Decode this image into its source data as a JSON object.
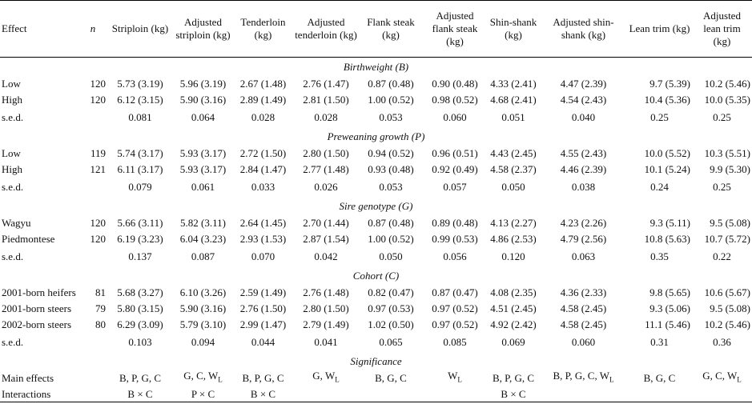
{
  "headers": [
    "Effect",
    "n",
    "Striploin (kg)",
    "Adjusted striploin (kg)",
    "Tenderloin (kg)",
    "Adjusted tenderloin (kg)",
    "Flank steak (kg)",
    "Adjusted flank steak (kg)",
    "Shin-shank (kg)",
    "Adjusted shin-shank (kg)",
    "Lean trim (kg)",
    "Adjusted lean trim (kg)"
  ],
  "sections": [
    {
      "title": "Birthweight (B)",
      "rows": [
        {
          "label": "Low",
          "n": "120",
          "values": [
            "5.73 (3.19)",
            "5.96 (3.19)",
            "2.67 (1.48)",
            "2.76 (1.47)",
            "0.87 (0.48)",
            "0.90 (0.48)",
            "4.33 (2.41)",
            "4.47 (2.39)",
            "9.7 (5.39)",
            "10.2 (5.46)"
          ]
        },
        {
          "label": "High",
          "n": "120",
          "values": [
            "6.12 (3.15)",
            "5.90 (3.16)",
            "2.89 (1.49)",
            "2.81 (1.50)",
            "1.00 (0.52)",
            "0.98 (0.52)",
            "4.68 (2.41)",
            "4.54 (2.43)",
            "10.4 (5.36)",
            "10.0 (5.35)"
          ]
        }
      ],
      "sed": {
        "label": "s.e.d.",
        "values": [
          "0.081",
          "0.064",
          "0.028",
          "0.028",
          "0.053",
          "0.060",
          "0.051",
          "0.040",
          "0.25",
          "0.25"
        ]
      }
    },
    {
      "title": "Preweaning growth (P)",
      "rows": [
        {
          "label": "Low",
          "n": "119",
          "values": [
            "5.74 (3.17)",
            "5.93 (3.17)",
            "2.72 (1.50)",
            "2.80 (1.50)",
            "0.94 (0.52)",
            "0.96 (0.51)",
            "4.43 (2.45)",
            "4.55 (2.43)",
            "10.0 (5.52)",
            "10.3 (5.51)"
          ]
        },
        {
          "label": "High",
          "n": "121",
          "values": [
            "6.11 (3.17)",
            "5.93 (3.17)",
            "2.84 (1.47)",
            "2.77 (1.48)",
            "0.93 (0.48)",
            "0.92 (0.49)",
            "4.58 (2.37)",
            "4.46 (2.39)",
            "10.1 (5.24)",
            "9.9 (5.30)"
          ]
        }
      ],
      "sed": {
        "label": "s.e.d.",
        "values": [
          "0.079",
          "0.061",
          "0.033",
          "0.026",
          "0.053",
          "0.057",
          "0.050",
          "0.038",
          "0.24",
          "0.25"
        ]
      }
    },
    {
      "title": "Sire genotype (G)",
      "rows": [
        {
          "label": "Wagyu",
          "n": "120",
          "values": [
            "5.66 (3.11)",
            "5.82 (3.11)",
            "2.64 (1.45)",
            "2.70 (1.44)",
            "0.87 (0.48)",
            "0.89 (0.48)",
            "4.13 (2.27)",
            "4.23 (2.26)",
            "9.3 (5.11)",
            "9.5 (5.08)"
          ]
        },
        {
          "label": "Piedmontese",
          "n": "120",
          "values": [
            "6.19 (3.23)",
            "6.04 (3.23)",
            "2.93 (1.53)",
            "2.87 (1.54)",
            "1.00 (0.52)",
            "0.99 (0.53)",
            "4.86 (2.53)",
            "4.79 (2.56)",
            "10.8 (5.63)",
            "10.7 (5.72)"
          ]
        }
      ],
      "sed": {
        "label": "s.e.d.",
        "values": [
          "0.137",
          "0.087",
          "0.070",
          "0.042",
          "0.050",
          "0.056",
          "0.120",
          "0.063",
          "0.35",
          "0.22"
        ]
      }
    },
    {
      "title": "Cohort (C)",
      "rows": [
        {
          "label": "2001-born heifers",
          "n": "81",
          "values": [
            "5.68 (3.27)",
            "6.10 (3.26)",
            "2.59 (1.49)",
            "2.76 (1.48)",
            "0.82 (0.47)",
            "0.87 (0.47)",
            "4.08 (2.35)",
            "4.36 (2.33)",
            "9.8 (5.65)",
            "10.6 (5.67)"
          ]
        },
        {
          "label": "2001-born steers",
          "n": "79",
          "values": [
            "5.80 (3.15)",
            "5.90 (3.16)",
            "2.76 (1.50)",
            "2.80 (1.50)",
            "0.97 (0.53)",
            "0.97 (0.52)",
            "4.51 (2.45)",
            "4.58 (2.45)",
            "9.3 (5.06)",
            "9.5 (5.08)"
          ]
        },
        {
          "label": "2002-born steers",
          "n": "80",
          "values": [
            "6.29 (3.09)",
            "5.79 (3.10)",
            "2.99 (1.47)",
            "2.79 (1.49)",
            "1.02 (0.50)",
            "0.97 (0.52)",
            "4.92 (2.42)",
            "4.58 (2.45)",
            "11.1 (5.46)",
            "10.2 (5.46)"
          ]
        }
      ],
      "sed": {
        "label": "s.e.d.",
        "values": [
          "0.103",
          "0.094",
          "0.044",
          "0.041",
          "0.065",
          "0.085",
          "0.069",
          "0.060",
          "0.31",
          "0.36"
        ]
      }
    }
  ],
  "significance": {
    "title": "Significance",
    "rows": [
      {
        "label": "Main effects",
        "values": [
          "B, P, G, C",
          "G, C, W_L",
          "B, P, G, C",
          "G, W_L",
          "B, G, C",
          "W_L",
          "B, P, G, C",
          "B, P, G, C, W_L",
          "B, G, C",
          "G, C, W_L"
        ]
      },
      {
        "label": "Interactions",
        "values": [
          "B × C",
          "P × C",
          "B × C",
          "",
          "",
          "",
          "B × C",
          "",
          "",
          ""
        ]
      }
    ]
  }
}
